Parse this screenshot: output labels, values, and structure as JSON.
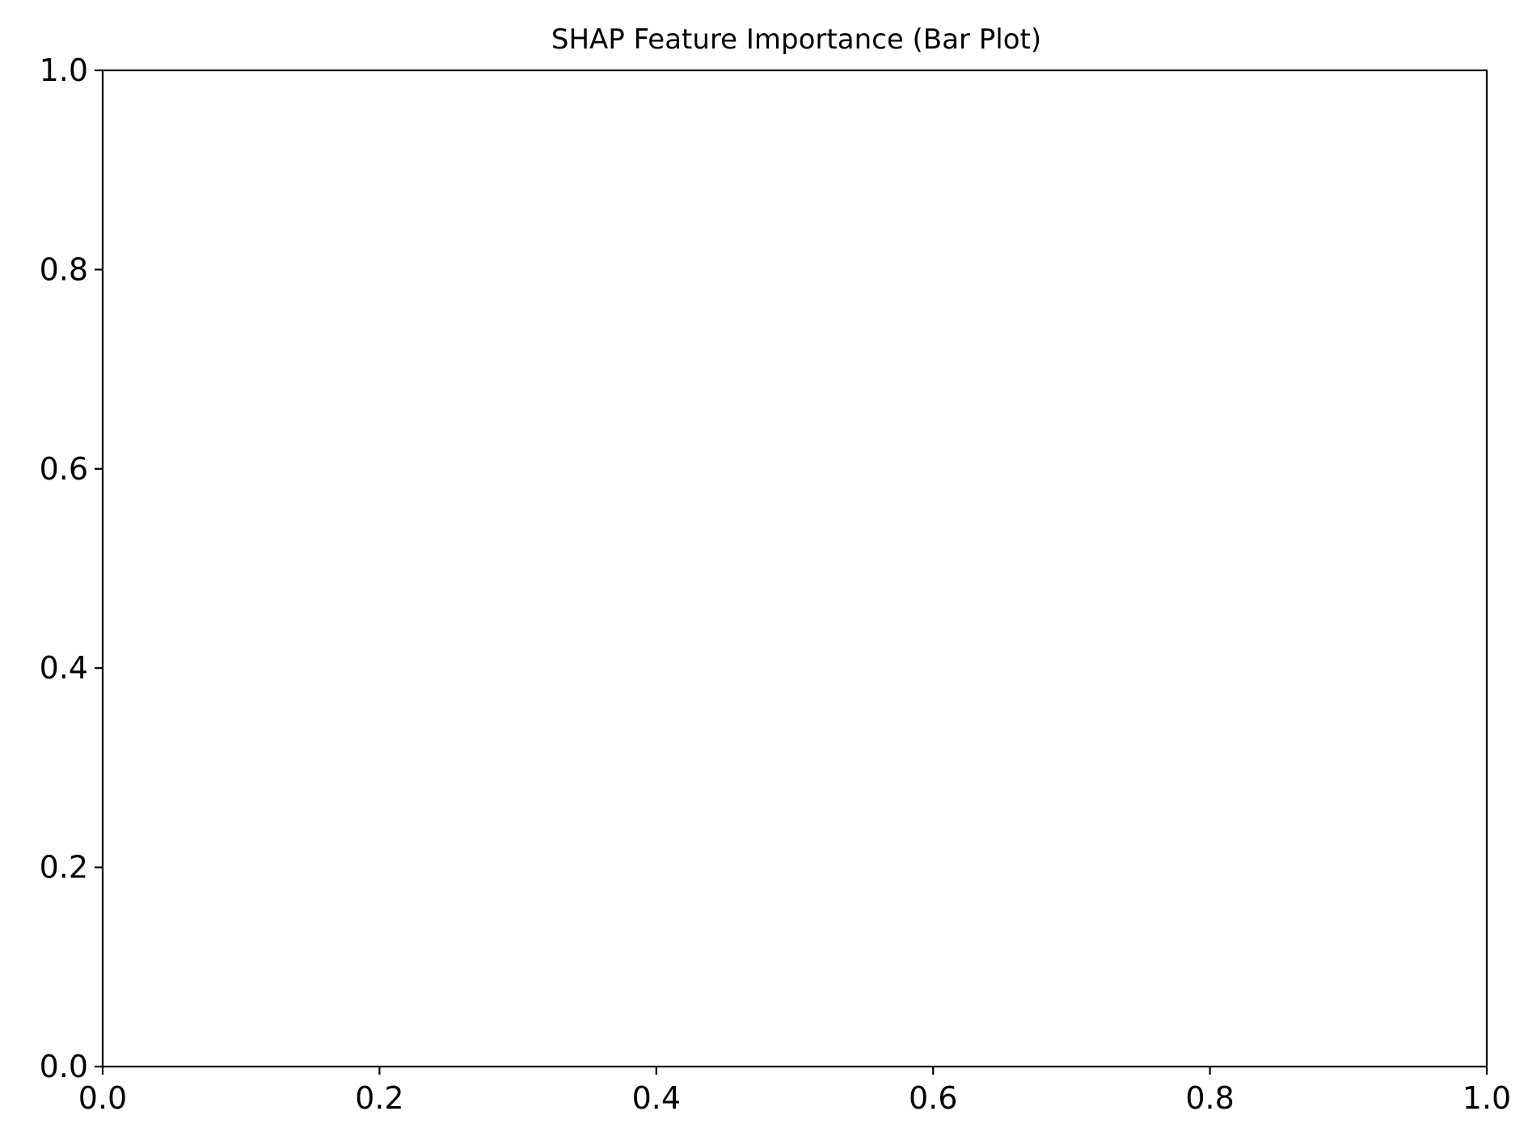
{
  "chart_data": {
    "type": "bar",
    "title": "SHAP Feature Importance (Bar Plot)",
    "xlabel": "",
    "ylabel": "",
    "xlim": [
      0.0,
      1.0
    ],
    "ylim": [
      0.0,
      1.0
    ],
    "categories": [],
    "values": [],
    "grid": false,
    "legend": "none",
    "x_ticks": [
      "0.0",
      "0.2",
      "0.4",
      "0.6",
      "0.8",
      "1.0"
    ],
    "y_ticks": [
      "0.0",
      "0.2",
      "0.4",
      "0.6",
      "0.8",
      "1.0"
    ],
    "colors": {
      "axis": "#000000",
      "background": "#ffffff"
    }
  }
}
